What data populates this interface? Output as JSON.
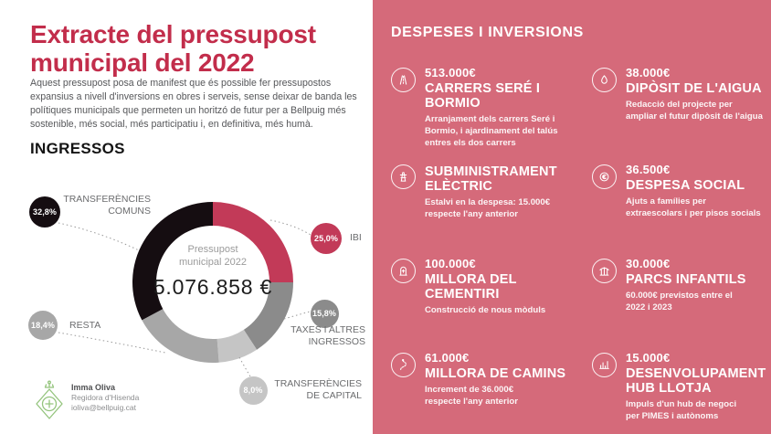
{
  "left": {
    "title": "Extracte del pressupost municipal del 2022",
    "intro": "Aquest pressupost posa de manifest que és possible fer pressupostos expansius a nivell d'inversions en obres i serveis, sense deixar de banda les polítiques municipals que permeten un horitzó de futur per a Bellpuig més sostenible, més social, més participatiu i, en definitiva, més humà.",
    "section_title": "INGRESSOS",
    "signature": {
      "name": "Imma Oliva",
      "role": "Regidora d'Hisenda",
      "email": "ioliva@bellpuig.cat",
      "logo": "bellpuig-crest-icon",
      "logo_color": "#94c47d"
    }
  },
  "chart_data": {
    "type": "pie",
    "subtype": "donut",
    "title": "INGRESSOS",
    "center_label": "Pressupost\nmunicipal 2022",
    "center_value": "5.076.858 €",
    "unit": "%",
    "direction": "clockwise",
    "start_angle_deg": 0,
    "slices": [
      {
        "label": "IBI",
        "pct_label": "25,0%",
        "value": 25.0,
        "color": "#c23a58"
      },
      {
        "label": "TAXES I ALTRES INGRESSOS",
        "pct_label": "15,8%",
        "value": 15.8,
        "color": "#8b8b8b"
      },
      {
        "label": "TRANSFERÈNCIES DE CAPITAL",
        "pct_label": "8,0%",
        "value": 8.0,
        "color": "#c5c5c5"
      },
      {
        "label": "RESTA",
        "pct_label": "18,4%",
        "value": 18.4,
        "color": "#a7a7a7"
      },
      {
        "label": "TRANSFERÈNCIES COMUNS",
        "pct_label": "32,8%",
        "value": 32.8,
        "color": "#150d11"
      }
    ]
  },
  "right": {
    "heading": "DESPESES I INVERSIONS",
    "panel_color": "#d56a7a",
    "items": [
      {
        "icon": "road-icon",
        "amount": "513.000€",
        "title": "CARRERS SERÉ I BORMIO",
        "desc": "Arranjament dels carrers Seré i\nBormio, i ajardinament del talús\nentres els dos carrers"
      },
      {
        "icon": "water-tank-icon",
        "amount": "38.000€",
        "title": "DIPÒSIT DE L'AIGUA",
        "desc": "Redacció del projecte per\nampliar el futur dipòsit de l'aigua"
      },
      {
        "icon": "electricity-pylon-icon",
        "amount": "",
        "title": "SUBMINISTRAMENT\nELÈCTRIC",
        "desc": "Estalvi en la despesa: 15.000€\nrespecte l'any anterior"
      },
      {
        "icon": "social-aid-icon",
        "amount": "36.500€",
        "title": "DESPESA SOCIAL",
        "desc": "Ajuts a famílies per\nextraescolars i per pisos socials"
      },
      {
        "icon": "cemetery-icon",
        "amount": "100.000€",
        "title": "MILLORA DEL\nCEMENTIRI",
        "desc": "Construcció de nous mòduls"
      },
      {
        "icon": "playground-icon",
        "amount": "30.000€",
        "title": "PARCS INFANTILS",
        "desc": "60.000€ previstos entre el\n2022 i 2023"
      },
      {
        "icon": "path-icon",
        "amount": "61.000€",
        "title": "MILLORA DE CAMINS",
        "desc": "Increment de 36.000€\nrespecte l'any anterior"
      },
      {
        "icon": "bar-chart-icon",
        "amount": "15.000€",
        "title": "DESENVOLUPAMENT\nHUB LLOTJA",
        "desc": "Impuls d'un hub de negoci\nper PIMES i autònoms"
      }
    ]
  },
  "colors": {
    "title_red": "#c22d4b",
    "panel_pink": "#d56a7a",
    "slice_crimson": "#c23a58",
    "slice_black": "#150d11",
    "text_gray": "#6b6c6e"
  }
}
